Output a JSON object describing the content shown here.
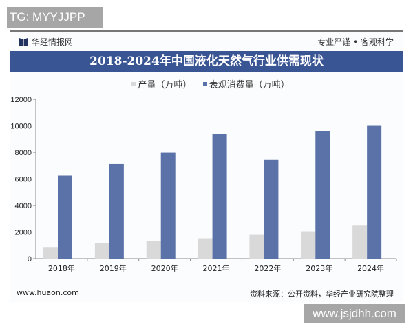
{
  "watermark_top": "TG: MYYJJPP",
  "watermark_bottom": "www.jsjdhh.com",
  "brand": "华经情报网",
  "slogan": "专业严谨 • 客观科学",
  "footer_left": "www.huaon.com",
  "footer_right": "资料来源：公开资料，华经产业研究院整理",
  "colors": {
    "production": "#d9d9d9",
    "consumption": "#5a72a8",
    "title_bg": "#3a5593"
  },
  "chart_data": {
    "type": "bar",
    "title": "2018-2024年中国液化天然气行业供需现状",
    "categories": [
      "2018年",
      "2019年",
      "2020年",
      "2021年",
      "2022年",
      "2023年",
      "2024年"
    ],
    "series": [
      {
        "name": "产量（万吨）",
        "values": [
          870,
          1180,
          1320,
          1530,
          1790,
          2050,
          2480
        ]
      },
      {
        "name": "表观消费量（万吨）",
        "values": [
          6260,
          7120,
          7970,
          9370,
          7440,
          9610,
          10050
        ]
      }
    ],
    "ylim": [
      0,
      12000
    ],
    "yticks": [
      "0",
      "2000",
      "4000",
      "6000",
      "8000",
      "10000",
      "12000"
    ],
    "legend": "top-center",
    "grid": false,
    "xlabel": "",
    "ylabel": ""
  }
}
